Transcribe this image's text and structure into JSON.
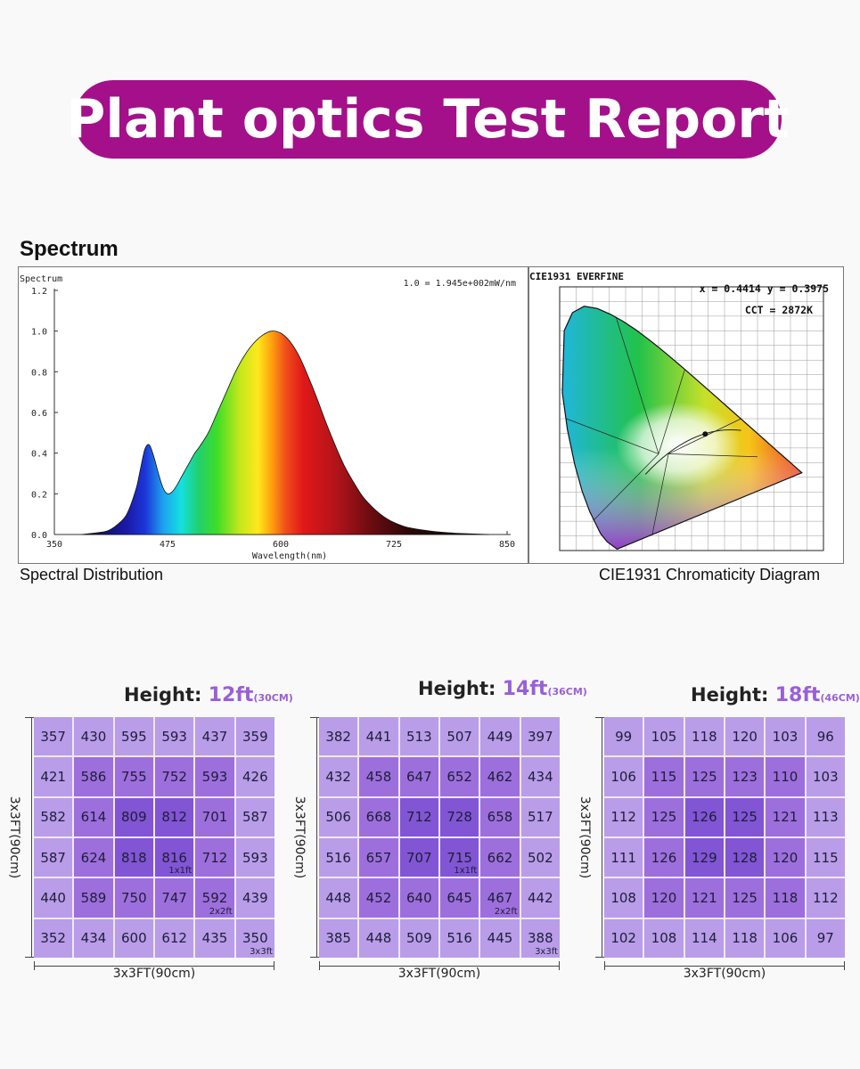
{
  "banner": {
    "title": "Plant optics Test Report"
  },
  "spectrum_section": {
    "heading": "Spectrum"
  },
  "chart_data": [
    {
      "type": "area",
      "title": "Spectrum",
      "annotation": "1.0 = 1.945e+002mW/nm",
      "xlabel": "Wavelength(nm)",
      "ylabel": "",
      "xlim": [
        350,
        850
      ],
      "ylim": [
        0,
        1.2
      ],
      "xticks": [
        "350",
        "475",
        "600",
        "725",
        "850"
      ],
      "yticks": [
        "0.0",
        "0.2",
        "0.4",
        "0.6",
        "0.8",
        "1.0",
        "1.2"
      ],
      "caption": "Spectral Distribution",
      "x": [
        380,
        400,
        410,
        420,
        430,
        440,
        445,
        450,
        455,
        460,
        465,
        470,
        475,
        480,
        485,
        490,
        495,
        500,
        505,
        510,
        520,
        530,
        540,
        550,
        560,
        570,
        580,
        590,
        600,
        610,
        620,
        630,
        640,
        650,
        660,
        670,
        680,
        690,
        700,
        710,
        720,
        730,
        740,
        760,
        780,
        800,
        830
      ],
      "values": [
        0.0,
        0.01,
        0.02,
        0.05,
        0.1,
        0.22,
        0.32,
        0.42,
        0.44,
        0.38,
        0.3,
        0.23,
        0.2,
        0.21,
        0.24,
        0.28,
        0.32,
        0.36,
        0.4,
        0.43,
        0.5,
        0.6,
        0.7,
        0.8,
        0.88,
        0.94,
        0.98,
        1.0,
        0.99,
        0.95,
        0.88,
        0.78,
        0.67,
        0.55,
        0.44,
        0.34,
        0.26,
        0.19,
        0.14,
        0.1,
        0.07,
        0.05,
        0.035,
        0.02,
        0.01,
        0.005,
        0.0
      ]
    },
    {
      "type": "scatter",
      "title": "CIE1931  EVERFINE",
      "readout": "x = 0.4414 y = 0.3975",
      "cct": "CCT = 2872K",
      "caption": "CIE1931 Chromaticity Diagram",
      "point": {
        "x": 0.4414,
        "y": 0.3975
      },
      "xlim": [
        0,
        0.8
      ],
      "ylim": [
        0,
        0.9
      ]
    },
    {
      "type": "heatmap",
      "title": "Height:",
      "height_value": "12ft",
      "height_cm": "(30CM)",
      "side_label": "3x3FT(90cm)",
      "bottom_label": "3x3FT(90cm)",
      "zone_labels": [
        "1x1ft",
        "2x2ft",
        "3x3ft"
      ],
      "rows": [
        [
          357,
          430,
          595,
          593,
          437,
          359
        ],
        [
          421,
          586,
          755,
          752,
          593,
          426
        ],
        [
          582,
          614,
          809,
          812,
          701,
          587
        ],
        [
          587,
          624,
          818,
          816,
          712,
          593
        ],
        [
          440,
          589,
          750,
          747,
          592,
          439
        ],
        [
          352,
          434,
          600,
          612,
          435,
          350
        ]
      ]
    },
    {
      "type": "heatmap",
      "title": "Height:",
      "height_value": "14ft",
      "height_cm": "(36CM)",
      "side_label": "3x3FT(90cm)",
      "bottom_label": "3x3FT(90cm)",
      "zone_labels": [
        "1x1ft",
        "2x2ft",
        "3x3ft"
      ],
      "rows": [
        [
          382,
          441,
          513,
          507,
          449,
          397
        ],
        [
          432,
          458,
          647,
          652,
          462,
          434
        ],
        [
          506,
          668,
          712,
          728,
          658,
          517
        ],
        [
          516,
          657,
          707,
          715,
          662,
          502
        ],
        [
          448,
          452,
          640,
          645,
          467,
          442
        ],
        [
          385,
          448,
          509,
          516,
          445,
          388
        ]
      ]
    },
    {
      "type": "heatmap",
      "title": "Height:",
      "height_value": "18ft",
      "height_cm": "(46CM)",
      "side_label": "3x3FT(90cm)",
      "bottom_label": "3x3FT(90cm)",
      "zone_labels": [],
      "rows": [
        [
          99,
          105,
          118,
          120,
          103,
          96
        ],
        [
          106,
          115,
          125,
          123,
          110,
          103
        ],
        [
          112,
          125,
          126,
          125,
          121,
          113
        ],
        [
          111,
          126,
          129,
          128,
          120,
          115
        ],
        [
          108,
          120,
          121,
          125,
          118,
          112
        ],
        [
          102,
          108,
          114,
          118,
          106,
          97
        ]
      ]
    }
  ],
  "colors": {
    "banner": "#a3108a",
    "outer_ring": "#b99de8",
    "mid_ring": "#9d6fdc",
    "center": "#8155d4",
    "height_accent": "#9a5fd8"
  }
}
